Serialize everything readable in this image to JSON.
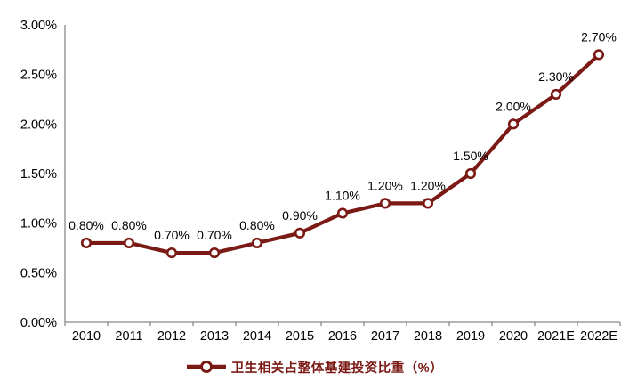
{
  "chart_data": {
    "type": "line",
    "title": "",
    "xlabel": "",
    "ylabel": "",
    "categories": [
      "2010",
      "2011",
      "2012",
      "2013",
      "2014",
      "2015",
      "2016",
      "2017",
      "2018",
      "2019",
      "2020",
      "2021E",
      "2022E"
    ],
    "series": [
      {
        "name": "卫生相关占整体基建投资比重（%）",
        "values": [
          0.8,
          0.8,
          0.7,
          0.7,
          0.8,
          0.9,
          1.1,
          1.2,
          1.2,
          1.5,
          2.0,
          2.3,
          2.7
        ],
        "data_labels": [
          "0.80%",
          "0.80%",
          "0.70%",
          "0.70%",
          "0.80%",
          "0.90%",
          "1.10%",
          "1.20%",
          "1.20%",
          "1.50%",
          "2.00%",
          "2.30%",
          "2.70%"
        ]
      }
    ],
    "ylim": [
      0,
      3
    ],
    "y_tick_labels": [
      "0.00%",
      "0.50%",
      "1.00%",
      "1.50%",
      "2.00%",
      "2.50%",
      "3.00%"
    ],
    "y_tick_values": [
      0,
      0.5,
      1.0,
      1.5,
      2.0,
      2.5,
      3.0
    ],
    "grid": false,
    "legend_position": "bottom",
    "colors": {
      "line": "#7B1A15",
      "marker_fill": "#FFFFFF",
      "axis": "#898989",
      "text": "#000000"
    }
  },
  "legend": {
    "label": "卫生相关占整体基建投资比重（%）"
  }
}
